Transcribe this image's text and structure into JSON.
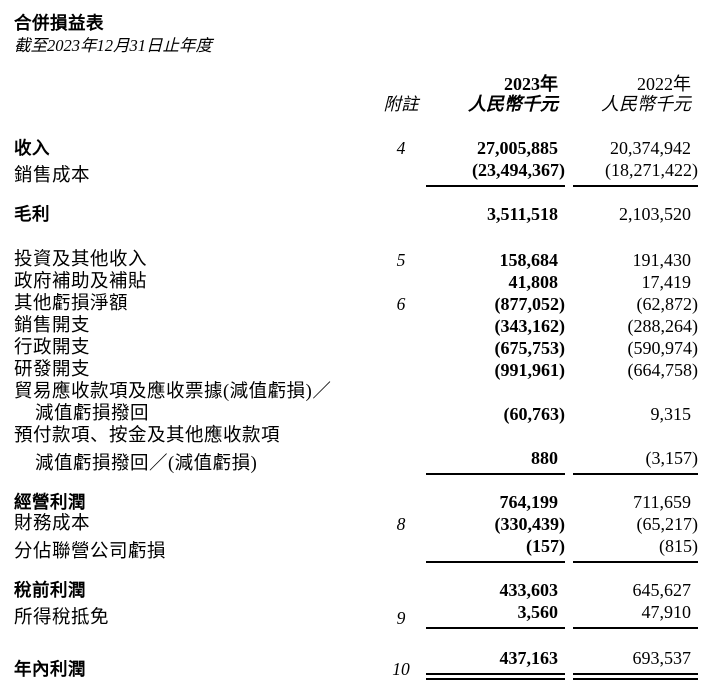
{
  "title": "合併損益表",
  "subtitle": "截至2023年12月31日止年度",
  "colors": {
    "text": "#000000",
    "rule": "#000000",
    "background": "#ffffff"
  },
  "table": {
    "header": {
      "note_label": "附註",
      "col_2023": {
        "year": "2023年",
        "unit": "人民幣千元"
      },
      "col_2022": {
        "year": "2022年",
        "unit": "人民幣千元"
      }
    },
    "rows": [
      {
        "label": "收入",
        "bold": true,
        "note": "4",
        "v2023": "27,005,885",
        "v2022": "20,374,942"
      },
      {
        "label": "銷售成本",
        "v2023": "(23,494,367)",
        "v2022": "(18,271,422)",
        "underline": "single"
      },
      {
        "label": "毛利",
        "bold": true,
        "v2023": "3,511,518",
        "v2022": "2,103,520",
        "gap": 16
      },
      {
        "label": "投資及其他收入",
        "note": "5",
        "v2023": "158,684",
        "v2022": "191,430",
        "gap": 24
      },
      {
        "label": "政府補助及補貼",
        "v2023": "41,808",
        "v2022": "17,419"
      },
      {
        "label": "其他虧損淨額",
        "note": "6",
        "v2023": "(877,052)",
        "v2022": "(62,872)"
      },
      {
        "label": "銷售開支",
        "v2023": "(343,162)",
        "v2022": "(288,264)"
      },
      {
        "label": "行政開支",
        "v2023": "(675,753)",
        "v2022": "(590,974)"
      },
      {
        "label": "研發開支",
        "v2023": "(991,961)",
        "v2022": "(664,758)"
      },
      {
        "label": "貿易應收款項及應收票據(減值虧損)／"
      },
      {
        "label": "減值虧損撥回",
        "indent": true,
        "v2023": "(60,763)",
        "v2022": "9,315"
      },
      {
        "label": "預付款項、按金及其他應收款項"
      },
      {
        "label": "減值虧損撥回／(減值虧損)",
        "indent": true,
        "v2023": "880",
        "v2022": "(3,157)",
        "underline": "single"
      },
      {
        "label": "經營利潤",
        "bold": true,
        "v2023": "764,199",
        "v2022": "711,659",
        "gap": 16
      },
      {
        "label": "財務成本",
        "note": "8",
        "v2023": "(330,439)",
        "v2022": "(65,217)"
      },
      {
        "label": "分佔聯營公司虧損",
        "v2023": "(157)",
        "v2022": "(815)",
        "underline": "single"
      },
      {
        "label": "稅前利潤",
        "bold": true,
        "v2023": "433,603",
        "v2022": "645,627",
        "gap": 16
      },
      {
        "label": "所得稅抵免",
        "note": "9",
        "v2023": "3,560",
        "v2022": "47,910",
        "underline": "single"
      },
      {
        "label": "年內利潤",
        "bold": true,
        "note": "10",
        "v2023": "437,163",
        "v2022": "693,537",
        "underline": "double",
        "gap": 18
      }
    ]
  }
}
